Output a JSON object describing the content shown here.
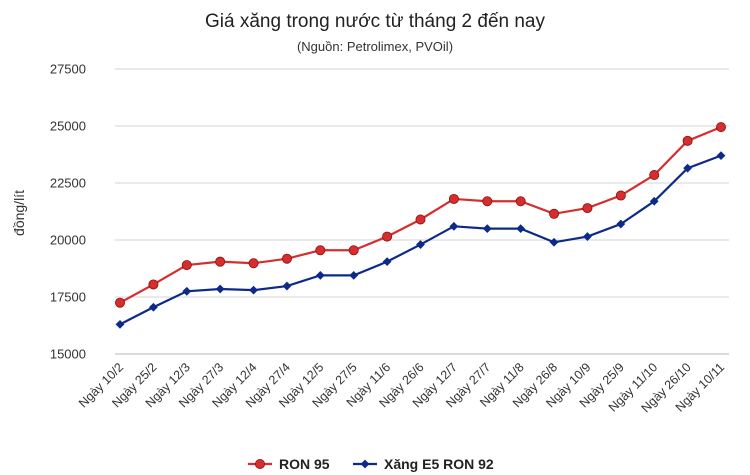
{
  "chart_data": {
    "type": "line",
    "title": "Giá xăng trong nước từ tháng 2 đến nay",
    "subtitle": "(Nguồn: Petrolimex, PVOil)",
    "ylabel": "đồng/lít",
    "xlabel": "",
    "ylim": [
      15000,
      27500
    ],
    "yticks": [
      "15000",
      "17500",
      "20000",
      "22500",
      "25000",
      "27500"
    ],
    "grid": true,
    "legend_position": "bottom",
    "categories": [
      "Ngày 10/2",
      "Ngày 25/2",
      "Ngày 12/3",
      "Ngày 27/3",
      "Ngày 12/4",
      "Ngày 27/4",
      "Ngày 12/5",
      "Ngày 27/5",
      "Ngày 11/6",
      "Ngày 26/6",
      "Ngày 12/7",
      "Ngày 27/7",
      "Ngày 11/8",
      "Ngày 26/8",
      "Ngày 10/9",
      "Ngày 25/9",
      "Ngày 11/10",
      "Ngày 26/10",
      "Ngày 10/11"
    ],
    "series": [
      {
        "name": "RON 95",
        "color": "#d62e2e",
        "marker": "circle",
        "values": [
          17250,
          18050,
          18900,
          19050,
          18980,
          19180,
          19550,
          19550,
          20150,
          20900,
          21800,
          21700,
          21700,
          21150,
          21400,
          21950,
          22850,
          24350,
          24950
        ]
      },
      {
        "name": "Xăng E5 RON 92",
        "color": "#0d2a8a",
        "marker": "diamond",
        "values": [
          16300,
          17050,
          17750,
          17850,
          17800,
          17980,
          18450,
          18450,
          19050,
          19800,
          20600,
          20500,
          20500,
          19900,
          20150,
          20700,
          21700,
          23150,
          23700
        ]
      }
    ]
  }
}
